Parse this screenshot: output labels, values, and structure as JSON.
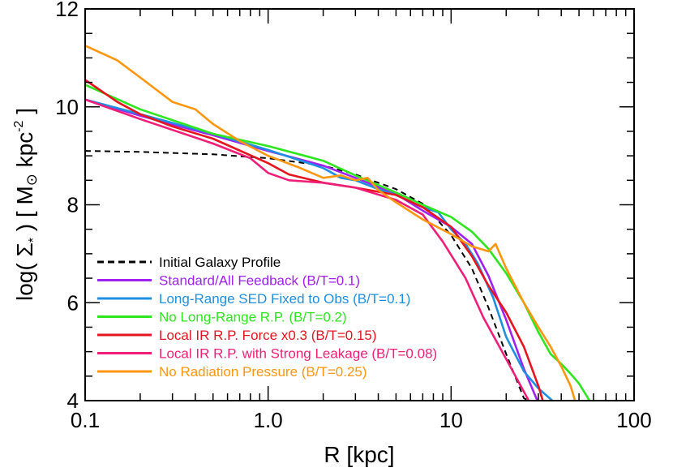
{
  "chart_data": {
    "type": "line",
    "xscale": "log",
    "xlim": [
      0.1,
      100
    ],
    "ylim": [
      4,
      12
    ],
    "xticks": [
      0.1,
      1,
      10,
      100
    ],
    "xtick_labels": [
      "0.1",
      "1.0",
      "10",
      "100"
    ],
    "yticks": [
      4,
      6,
      8,
      10,
      12
    ],
    "ytick_labels": [
      "4",
      "6",
      "8",
      "10",
      "12"
    ],
    "xlabel": "R  [kpc]",
    "ylabel_prefix": "log( Σ",
    "ylabel_sub": "*",
    "ylabel_mid": " )  [ M",
    "ylabel_sun": "⊙",
    "ylabel_unit": " kpc",
    "ylabel_exp": "-2",
    "ylabel_end": " ]",
    "legend_position": "bottom-left",
    "series": [
      {
        "name": "Initial Galaxy Profile",
        "color": "#000000",
        "dashed": true,
        "x": [
          0.1,
          0.2,
          0.5,
          1.0,
          2.0,
          3.0,
          5.0,
          7.0,
          10.0,
          13.0,
          16.0,
          20.0,
          25.0,
          28.0
        ],
        "y": [
          9.1,
          9.08,
          9.03,
          8.95,
          8.8,
          8.62,
          8.32,
          8.02,
          7.38,
          6.7,
          5.9,
          4.95,
          4.05,
          3.95
        ]
      },
      {
        "name": "Standard/All Feedback (B/T=0.1)",
        "color": "#a020f0",
        "dashed": false,
        "x": [
          0.1,
          0.2,
          0.5,
          1.0,
          2.0,
          3.0,
          5.0,
          7.0,
          10.0,
          13.0,
          16.0,
          20.0,
          25.0,
          30.0
        ],
        "y": [
          10.15,
          9.82,
          9.42,
          9.1,
          8.8,
          8.55,
          8.22,
          7.88,
          7.55,
          7.2,
          6.55,
          5.65,
          4.65,
          3.95
        ]
      },
      {
        "name": "Long-Range SED Fixed to Obs (B/T=0.1)",
        "color": "#1e8fe0",
        "dashed": false,
        "x": [
          0.1,
          0.2,
          0.5,
          1.0,
          2.0,
          2.5,
          3.0,
          4.0,
          5.0,
          7.0,
          8.5,
          10.0,
          12.0,
          14.0,
          17.0,
          20.0,
          25.0,
          30.0,
          37.0
        ],
        "y": [
          10.15,
          9.85,
          9.45,
          9.12,
          8.75,
          8.55,
          8.5,
          8.32,
          8.2,
          7.95,
          7.85,
          7.5,
          7.2,
          6.8,
          6.1,
          5.3,
          4.6,
          4.25,
          3.95
        ]
      },
      {
        "name": "No Long-Range R.P. (B/T=0.2)",
        "color": "#2de61e",
        "dashed": false,
        "x": [
          0.1,
          0.2,
          0.5,
          1.0,
          2.0,
          3.0,
          5.0,
          7.0,
          10.0,
          13.0,
          16.0,
          20.0,
          25.0,
          30.0,
          35.0,
          40.0,
          45.0,
          50.0,
          55.0,
          58.0
        ],
        "y": [
          10.45,
          9.95,
          9.45,
          9.2,
          8.9,
          8.6,
          8.25,
          8.0,
          7.75,
          7.45,
          7.1,
          6.6,
          6.0,
          5.4,
          4.95,
          4.75,
          4.55,
          4.35,
          4.1,
          3.95
        ]
      },
      {
        "name": "Local IR R.P. Force x0.3 (B/T=0.15)",
        "color": "#e6141e",
        "dashed": false,
        "x": [
          0.1,
          0.15,
          0.2,
          0.3,
          0.5,
          1.0,
          1.3,
          2.0,
          3.0,
          5.0,
          7.0,
          10.0,
          13.0,
          16.0,
          20.0,
          25.0,
          30.0,
          32.0
        ],
        "y": [
          10.55,
          10.1,
          9.85,
          9.6,
          9.35,
          8.85,
          8.62,
          8.45,
          8.35,
          8.2,
          7.95,
          7.55,
          6.95,
          6.35,
          5.8,
          5.1,
          4.3,
          3.95
        ]
      },
      {
        "name": "Local IR R.P. with Strong Leakage (B/T=0.08)",
        "color": "#f01e78",
        "dashed": false,
        "x": [
          0.1,
          0.2,
          0.5,
          0.8,
          1.0,
          1.3,
          2.0,
          3.0,
          5.0,
          7.0,
          9.0,
          12.0,
          15.0,
          20.0,
          27.0
        ],
        "y": [
          10.15,
          9.75,
          9.25,
          8.95,
          8.65,
          8.5,
          8.45,
          8.35,
          8.1,
          7.8,
          7.25,
          6.5,
          5.7,
          4.85,
          3.95
        ]
      },
      {
        "name": "No Radiation Pressure (B/T=0.25)",
        "color": "#ff9610",
        "dashed": false,
        "x": [
          0.1,
          0.15,
          0.2,
          0.3,
          0.4,
          0.5,
          0.7,
          1.0,
          1.5,
          2.0,
          2.5,
          3.0,
          3.5,
          4.0,
          5.0,
          7.0,
          10.0,
          13.0,
          16.0,
          17.5,
          20.0,
          25.0,
          30.0,
          35.0,
          40.0,
          45.0,
          48.0
        ],
        "y": [
          11.25,
          10.95,
          10.6,
          10.1,
          9.95,
          9.65,
          9.3,
          9.0,
          8.75,
          8.55,
          8.6,
          8.5,
          8.55,
          8.3,
          8.05,
          7.7,
          7.4,
          7.15,
          7.05,
          7.2,
          6.7,
          6.0,
          5.5,
          5.1,
          4.7,
          4.3,
          3.95
        ]
      }
    ]
  }
}
